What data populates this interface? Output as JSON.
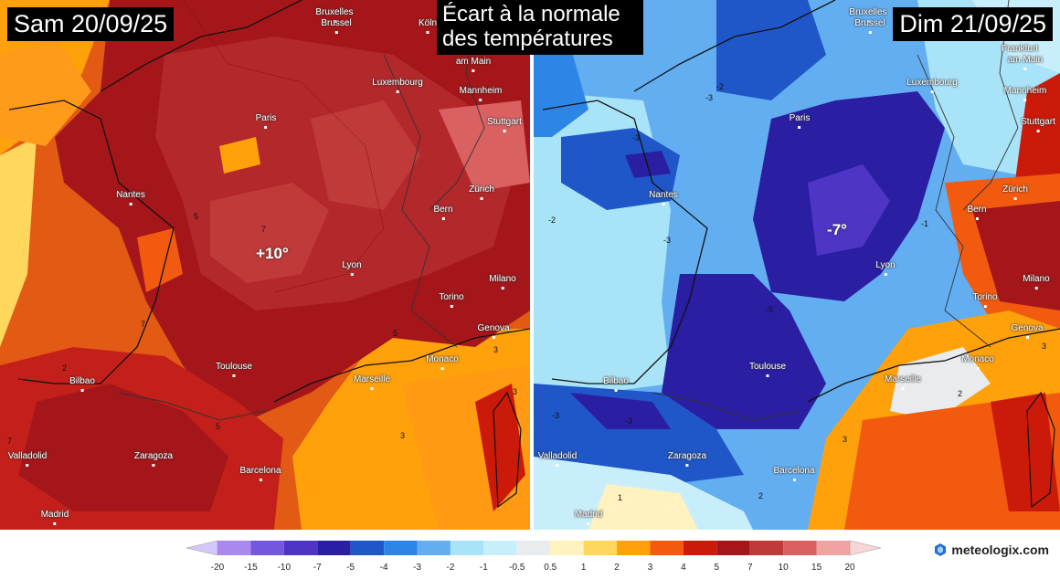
{
  "title": {
    "line1": "Écart à la normale",
    "line2": "des températures"
  },
  "panels": [
    {
      "date": "Sam 20/09/25",
      "anomaly_label": "+10°",
      "cities": [
        "Bruxelles",
        "Brussel",
        "Köln",
        "Luxembourg",
        "am Main",
        "Mannheim",
        "Stuttgart",
        "Paris",
        "Nantes",
        "Zürich",
        "Bern",
        "Lyon",
        "Milano",
        "Torino",
        "Genova",
        "Monaco",
        "Toulouse",
        "Marseille",
        "Bilbao",
        "Valladolid",
        "Zaragoza",
        "Barcelona",
        "Madrid"
      ],
      "contours": [
        "7",
        "7",
        "5",
        "5",
        "5",
        "3",
        "2",
        "3",
        "3",
        "7"
      ]
    },
    {
      "date": "Dim 21/09/25",
      "anomaly_label": "-7°",
      "cities": [
        "Bruxelles",
        "Brussel",
        "Luxembourg",
        "Frankfurt",
        "am Main",
        "Mannheim",
        "Stuttgart",
        "Paris",
        "Nantes",
        "Zürich",
        "Bern",
        "Lyon",
        "Milano",
        "Torino",
        "Genova",
        "Monaco",
        "Toulouse",
        "Marseille",
        "Bilbao",
        "Valladolid",
        "Zaragoza",
        "Barcelona",
        "Madrid"
      ],
      "contours": [
        "-3",
        "-3",
        "-2",
        "-3",
        "-5",
        "-3",
        "-3",
        "-1",
        "2",
        "1",
        "2",
        "3",
        "3",
        "-2"
      ]
    }
  ],
  "legend": {
    "ticks": [
      "-20",
      "-15",
      "-10",
      "-7",
      "-5",
      "-4",
      "-3",
      "-2",
      "-1",
      "-0.5",
      "0.5",
      "1",
      "2",
      "3",
      "4",
      "5",
      "7",
      "10",
      "15",
      "20"
    ],
    "colors": [
      "#a989f0",
      "#7358de",
      "#4e35c6",
      "#2a1ea3",
      "#1f57c8",
      "#2d86e6",
      "#63aef0",
      "#a9e3f7",
      "#c9eefb",
      "#e8ecef",
      "#fff2bf",
      "#ffd75c",
      "#ffa10a",
      "#f25a0f",
      "#cc1a0a",
      "#a5161a",
      "#c13a3a",
      "#da6161",
      "#f0a3a3"
    ],
    "end_low": "#d3c7fb",
    "end_high": "#f9d5d5"
  },
  "brand": "meteologix.com",
  "colors": {
    "accent_icon": "#1e6fd9"
  }
}
